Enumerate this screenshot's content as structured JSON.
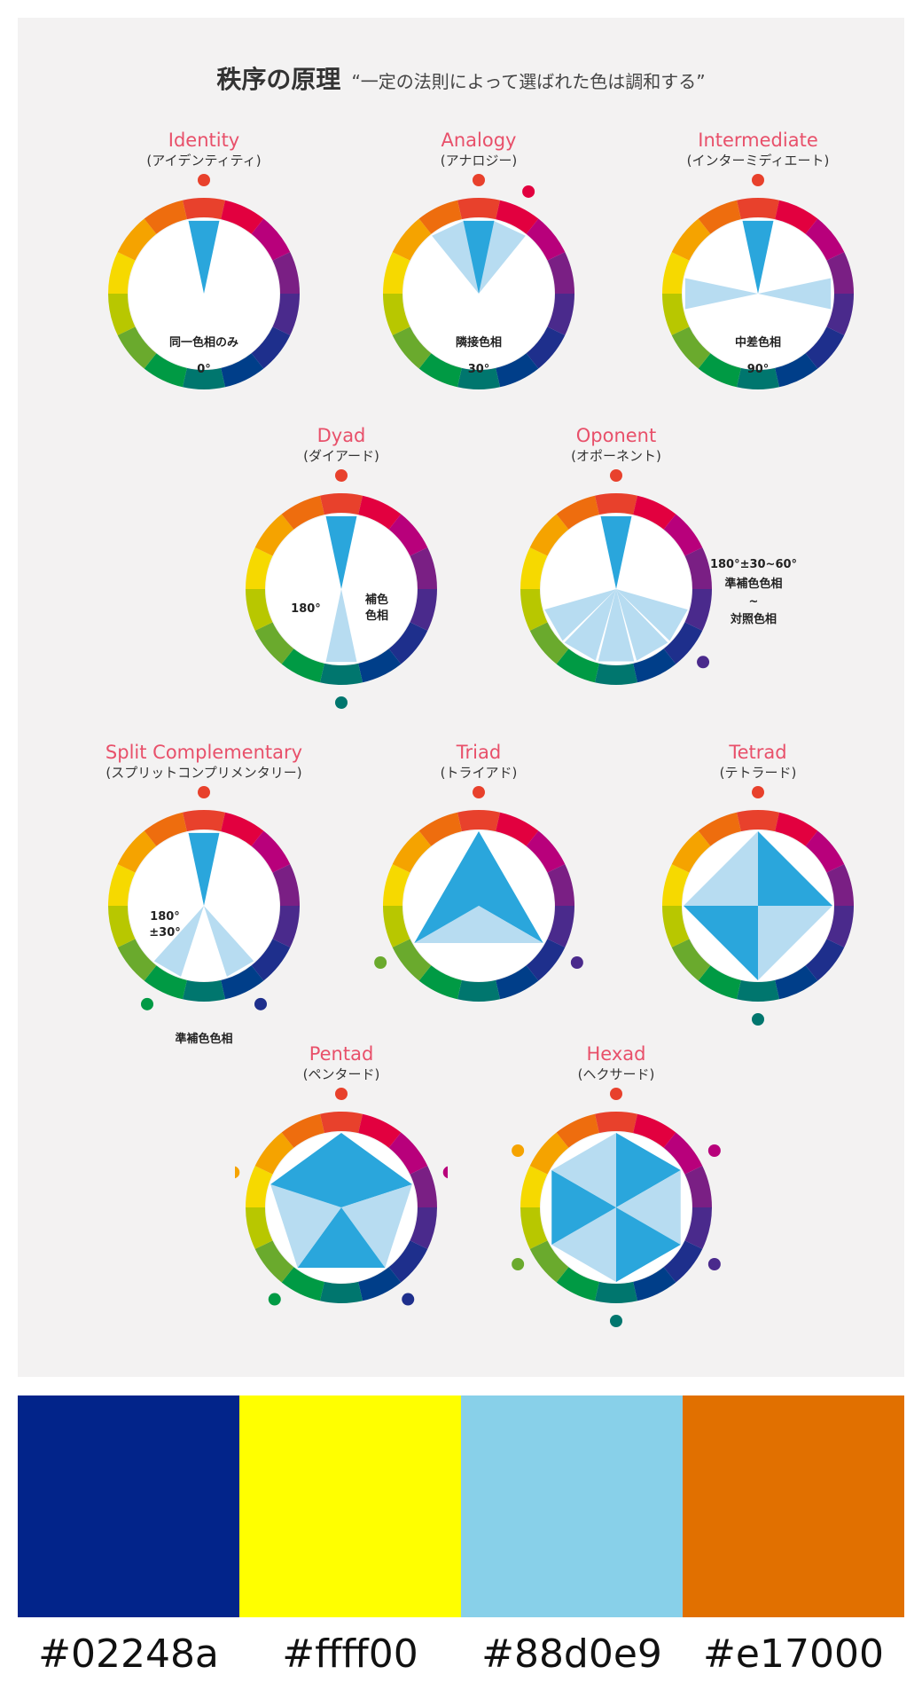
{
  "header": {
    "title": "秩序の原理",
    "subtitle": "“一定の法則によって選ばれた色は調和する”"
  },
  "wheel_colors": [
    "#e8412c",
    "#e2003f",
    "#b8007b",
    "#7a1f84",
    "#4a2a8c",
    "#1e2f8c",
    "#003e89",
    "#00766e",
    "#009a44",
    "#6aaa2d",
    "#b8c700",
    "#f6d900",
    "#f5a300",
    "#ee6d0e"
  ],
  "accents": {
    "title_red": "#e8506a",
    "wedge_dark": "#2aa6dc",
    "wedge_light": "#b7dcf1"
  },
  "schemes": [
    {
      "key": "identity",
      "name": "Identity",
      "kana": "(アイデンティティ)",
      "note": "同一色相のみ",
      "angle": "0°"
    },
    {
      "key": "analogy",
      "name": "Analogy",
      "kana": "(アナロジー)",
      "note": "隣接色相",
      "angle": "30°"
    },
    {
      "key": "intermediate",
      "name": "Intermediate",
      "kana": "(インターミディエート)",
      "note": "中差色相",
      "angle": "90°"
    },
    {
      "key": "dyad",
      "name": "Dyad",
      "kana": "(ダイアード)",
      "note_left": "180°",
      "note_right": "補色\n色相"
    },
    {
      "key": "oponent",
      "name": "Oponent",
      "kana": "(オポーネント)",
      "note_lines": [
        "180°±30~60°",
        "準補色色相",
        "~",
        "対照色相"
      ]
    },
    {
      "key": "split",
      "name": "Split Complementary",
      "kana": "(スプリットコンプリメンタリー)",
      "note_lines": [
        "180°",
        "±30°"
      ],
      "note_below": "準補色色相"
    },
    {
      "key": "triad",
      "name": "Triad",
      "kana": "(トライアド)"
    },
    {
      "key": "tetrad",
      "name": "Tetrad",
      "kana": "(テトラード)"
    },
    {
      "key": "pentad",
      "name": "Pentad",
      "kana": "(ペンタード)"
    },
    {
      "key": "hexad",
      "name": "Hexad",
      "kana": "(ヘクサード)"
    }
  ],
  "palette": [
    {
      "hex": "#02248a",
      "label": "#02248a"
    },
    {
      "hex": "#ffff00",
      "label": "#ffff00"
    },
    {
      "hex": "#88d0e9",
      "label": "#88d0e9"
    },
    {
      "hex": "#e17000",
      "label": "#e17000"
    }
  ]
}
